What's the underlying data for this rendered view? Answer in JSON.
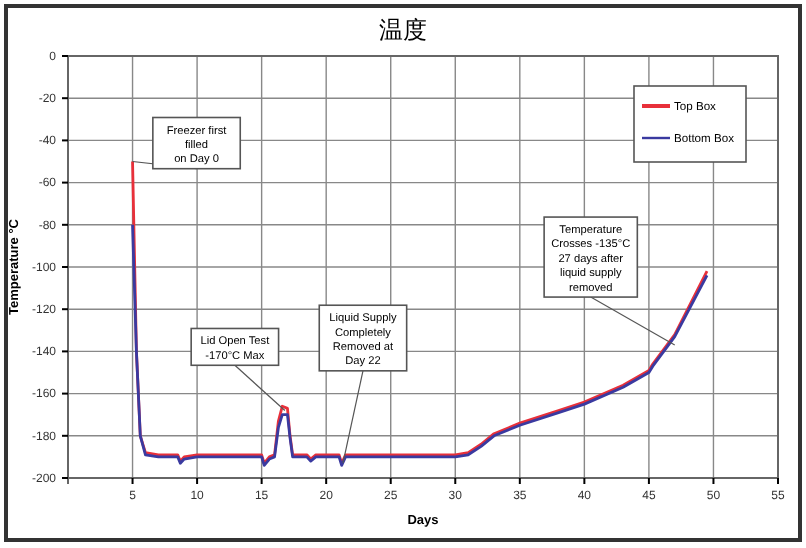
{
  "chart_data": {
    "type": "line",
    "title": "温度",
    "xlabel": "Days",
    "ylabel": "Temperature °C",
    "xlim": [
      0,
      55
    ],
    "xticks": [
      5,
      10,
      15,
      20,
      25,
      30,
      35,
      40,
      45,
      50,
      55
    ],
    "ylim": [
      -200,
      0
    ],
    "yticks": [
      0,
      -20,
      -40,
      -60,
      -80,
      -100,
      -120,
      -140,
      -160,
      -180,
      -200
    ],
    "grid": true,
    "legend": "top right",
    "marker": "none",
    "line_style": "solid",
    "series": [
      {
        "name": "Top Box",
        "color": "#e8303a",
        "x": [
          5,
          5.3,
          5.6,
          6,
          7,
          8.5,
          8.7,
          9,
          10,
          12,
          15,
          15.2,
          15.6,
          16,
          16.3,
          16.6,
          17,
          17.2,
          17.4,
          18.5,
          18.8,
          19.2,
          21,
          21.2,
          21.5,
          25,
          30,
          31,
          32,
          33,
          35,
          38,
          40,
          43,
          45,
          45.3,
          47,
          49.5
        ],
        "values": [
          -50,
          -140,
          -180,
          -188,
          -189,
          -189,
          -192,
          -190,
          -189,
          -189,
          -189,
          -193,
          -190,
          -189,
          -173,
          -166,
          -167,
          -180,
          -189,
          -189,
          -191,
          -189,
          -189,
          -193,
          -189,
          -189,
          -189,
          -188,
          -184,
          -179,
          -174,
          -168,
          -164,
          -156,
          -149,
          -146,
          -132,
          -102
        ]
      },
      {
        "name": "Bottom Box",
        "color": "#3a3aa0",
        "x": [
          5,
          5.3,
          5.6,
          6,
          7,
          8.5,
          8.7,
          9,
          10,
          12,
          15,
          15.2,
          15.6,
          16,
          16.3,
          16.6,
          17,
          17.2,
          17.4,
          18.5,
          18.8,
          19.2,
          21,
          21.2,
          21.5,
          25,
          30,
          31,
          32,
          33,
          35,
          38,
          40,
          43,
          45,
          45.3,
          47,
          49.5
        ],
        "values": [
          -80,
          -140,
          -180,
          -189,
          -190,
          -190,
          -193,
          -191,
          -190,
          -190,
          -190,
          -194,
          -191,
          -190,
          -176,
          -170,
          -170,
          -181,
          -190,
          -190,
          -192,
          -190,
          -190,
          -194,
          -190,
          -190,
          -190,
          -189,
          -185,
          -180,
          -175,
          -169,
          -165,
          -157,
          -150,
          -147,
          -133,
          -104
        ]
      }
    ],
    "annotations": [
      {
        "text": "Freezer first\nfilled\non Day 0",
        "x": 5,
        "y": -50
      },
      {
        "text": "Lid Open Test\n-170°C Max",
        "x": 16.8,
        "y": -168
      },
      {
        "text": "Liquid Supply\nCompletely\nRemoved at\nDay 22",
        "x": 21.3,
        "y": -193
      },
      {
        "text": "Temperature\nCrosses -135°C\n27 days after\nliquid supply\nremoved",
        "x": 47,
        "y": -137
      }
    ]
  }
}
